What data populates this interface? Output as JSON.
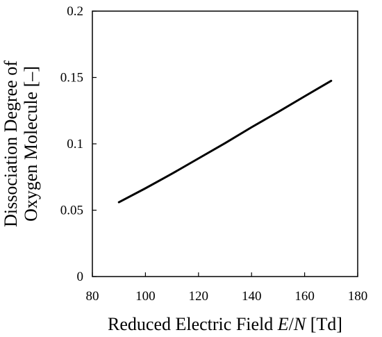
{
  "chart_data": {
    "type": "line",
    "title": "",
    "xlabel": "Reduced Electric Field E/N [Td]",
    "xlabel_parts": [
      "Reduced Electric Field ",
      "E",
      "/",
      "N",
      " [Td]"
    ],
    "ylabel_lines": [
      "Dissociation Degree of",
      "Oxygen Molecule [–]"
    ],
    "xlim": [
      80,
      180
    ],
    "ylim": [
      0,
      0.2
    ],
    "x_ticks": [
      "80",
      "100",
      "120",
      "140",
      "160",
      "180"
    ],
    "y_ticks": [
      "0",
      "0.05",
      "0.1",
      "0.15",
      "0.2"
    ],
    "grid": false,
    "legend": "none",
    "series": [
      {
        "color": "#000000",
        "x": [
          90,
          100,
          110,
          120,
          130,
          140,
          150,
          160,
          170
        ],
        "y": [
          0.056,
          0.0665,
          0.0775,
          0.089,
          0.1005,
          0.1125,
          0.124,
          0.1358,
          0.1475
        ]
      }
    ]
  }
}
